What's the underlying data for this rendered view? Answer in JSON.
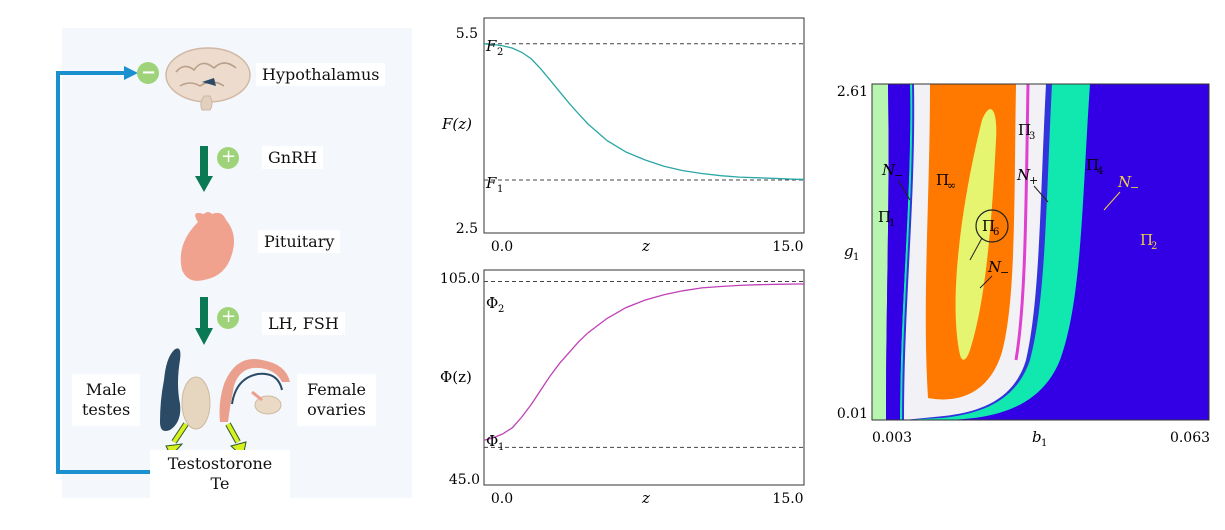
{
  "diagram": {
    "nodes": {
      "hypothalamus": "Hypothalamus",
      "gnrh": "GnRH",
      "pituitary": "Pituitary",
      "lhfsh": "LH, FSH",
      "male": [
        "Male",
        "testes"
      ],
      "female": [
        "Female",
        "ovaries"
      ],
      "testosterone": [
        "Testostorone",
        "Te"
      ]
    },
    "signs": {
      "minus": "−",
      "plus": "+"
    },
    "colors": {
      "feedback_line": "#1a90cf",
      "sign_circle": "#9fd37a",
      "down_arrow": "#0a7a55",
      "yellow_arrow": "#d8f020",
      "brain": "#eddccd",
      "pituitary": "#f0a28e",
      "testes_dark": "#2b4a66",
      "testes_light": "#e6d6bf",
      "ovary_pink": "#eba08d"
    }
  },
  "chart_data": [
    {
      "type": "line",
      "xlabel": "z",
      "ylabel": "F(z)",
      "x_ticks": [
        "0.0",
        "15.0"
      ],
      "y_ticks": [
        "5.5",
        "2.5"
      ],
      "xlim": [
        -1.5,
        15.4
      ],
      "ylim": [
        2.5,
        5.5
      ],
      "series": [
        {
          "color": "#2aa7a4",
          "x": [
            -1.5,
            -1,
            -0.5,
            0,
            0.5,
            1,
            1.5,
            2,
            2.5,
            3,
            3.5,
            4,
            5,
            6,
            7,
            8,
            9,
            10,
            11,
            12,
            13,
            14,
            15,
            15.4
          ],
          "y": [
            5.14,
            5.13,
            5.11,
            5.08,
            5.02,
            4.93,
            4.79,
            4.63,
            4.47,
            4.31,
            4.16,
            4.02,
            3.79,
            3.63,
            3.52,
            3.43,
            3.37,
            3.33,
            3.3,
            3.28,
            3.27,
            3.26,
            3.25,
            3.25
          ]
        }
      ],
      "reference_lines": [
        {
          "label": "F",
          "sub": "2",
          "y": 5.14
        },
        {
          "label": "F",
          "sub": "1",
          "y": 3.24
        }
      ]
    },
    {
      "type": "line",
      "xlabel": "z",
      "ylabel": "Φ(z)",
      "x_ticks": [
        "0.0",
        "15.0"
      ],
      "y_ticks": [
        "105.0",
        "45.0"
      ],
      "xlim": [
        -1.5,
        15.4
      ],
      "ylim": [
        45.0,
        105.0
      ],
      "series": [
        {
          "color": "#c040b8",
          "x": [
            -1.5,
            -1,
            -0.5,
            0,
            0.5,
            1,
            1.5,
            2,
            2.5,
            3,
            3.5,
            4,
            5,
            6,
            7,
            8,
            9,
            10,
            11,
            12,
            13,
            14,
            15,
            15.4
          ],
          "y": [
            57.5,
            58.2,
            59.3,
            61,
            64,
            67.5,
            71.5,
            75.5,
            79,
            82,
            85,
            87.5,
            91.5,
            94.5,
            96.6,
            98.1,
            99.2,
            100,
            100.4,
            100.7,
            100.9,
            101,
            101.1,
            101.1
          ]
        }
      ],
      "reference_lines": [
        {
          "label": "Φ",
          "sub": "2",
          "y": 101.8
        },
        {
          "label": "Φ",
          "sub": "1",
          "y": 55.5
        }
      ]
    },
    {
      "type": "region-map",
      "xlabel": "b",
      "xlabel_sub": "1",
      "ylabel": "g",
      "ylabel_sub": "1",
      "x_ticks": [
        "0.003",
        "0.063"
      ],
      "y_ticks": [
        "2.61",
        "0.01"
      ],
      "xlim": [
        0.003,
        0.063
      ],
      "ylim": [
        0.01,
        2.61
      ],
      "regions": [
        {
          "label": "Π",
          "sub": "1",
          "color": "#b8f5b0"
        },
        {
          "label": "Π",
          "sub": "2",
          "color": "#3300e6"
        },
        {
          "label": "Π",
          "sub": "3",
          "color": "#ff7800"
        },
        {
          "label": "Π",
          "sub": "4",
          "color": "#10e8b0"
        },
        {
          "label": "Π",
          "sub": "6",
          "color": "#e6f570"
        },
        {
          "label": "Π",
          "sub": "∞",
          "color": "#f2f2f6"
        }
      ],
      "annotations": [
        {
          "label": "N",
          "sub": "−"
        },
        {
          "label": "N",
          "sub": "+"
        },
        {
          "label": "N",
          "sub": "−"
        },
        {
          "label": "N",
          "sub": "−"
        }
      ]
    }
  ]
}
